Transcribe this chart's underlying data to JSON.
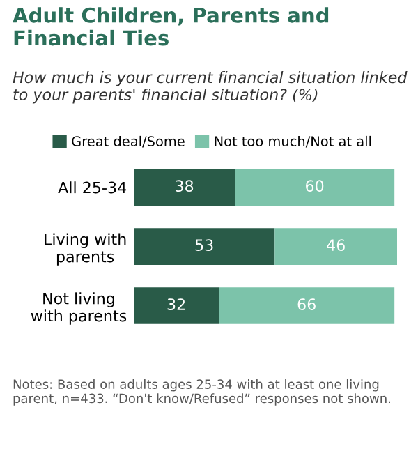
{
  "chart_data": {
    "type": "bar",
    "orientation": "horizontal",
    "stacked": true,
    "title": "Adult Children, Parents and Financial Ties",
    "subtitle": "How much is your current financial situation linked to your parents' financial situation? (%)",
    "categories": [
      "All 25-34",
      "Living with parents",
      "Not living with parents"
    ],
    "series": [
      {
        "name": "Great deal/Some",
        "color": "#295b48",
        "values": [
          38,
          53,
          32
        ]
      },
      {
        "name": "Not too much/Not at all",
        "color": "#7cc3aa",
        "values": [
          60,
          46,
          66
        ]
      }
    ],
    "data_labels": true,
    "legend": "top",
    "annotations": [
      "Notes: Based on adults ages 25-34 with at least one living parent, n=433. “Don't know/Refused” responses not shown."
    ]
  }
}
